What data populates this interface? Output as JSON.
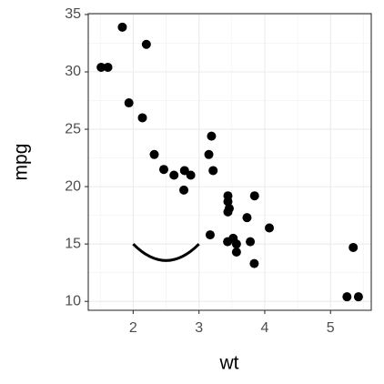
{
  "chart_data": {
    "type": "scatter",
    "x_label": "wt",
    "y_label": "mpg",
    "x": [
      2.62,
      2.875,
      2.32,
      3.215,
      3.44,
      3.46,
      3.57,
      3.19,
      3.15,
      3.44,
      3.44,
      4.07,
      3.73,
      3.78,
      5.25,
      5.424,
      5.345,
      2.2,
      1.615,
      1.835,
      2.465,
      3.52,
      3.435,
      3.84,
      3.845,
      1.935,
      2.14,
      1.513,
      3.17,
      2.77,
      3.57,
      2.78
    ],
    "series": [
      {
        "name": "mpg",
        "color": "#000000",
        "values": [
          21,
          21,
          22.8,
          21.4,
          18.7,
          18.1,
          14.3,
          24.4,
          22.8,
          19.2,
          17.8,
          16.4,
          17.3,
          15.2,
          10.4,
          10.4,
          14.7,
          32.4,
          30.4,
          33.9,
          21.5,
          15.5,
          15.2,
          13.3,
          19.2,
          27.3,
          26,
          30.4,
          15.8,
          19.7,
          15,
          21.4
        ]
      }
    ],
    "xlim": [
      1.317,
      5.619
    ],
    "ylim": [
      9.225,
      35.075
    ],
    "xticks": [
      2,
      3,
      4,
      5
    ],
    "yticks": [
      10,
      15,
      20,
      25,
      30,
      35
    ],
    "xminor": [
      1.5,
      2.5,
      3.5,
      4.5,
      5.5
    ],
    "yminor": [
      12.5,
      17.5,
      22.5,
      27.5,
      32.5
    ],
    "grid": true,
    "annotations": [
      {
        "type": "curve",
        "x": 2,
        "y": 15,
        "xend": 3,
        "yend": 15
      }
    ]
  }
}
